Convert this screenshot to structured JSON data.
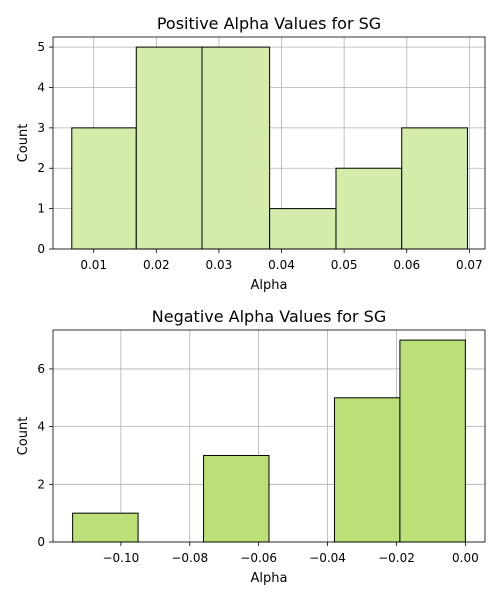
{
  "chart_data": [
    {
      "type": "bar",
      "title": "Positive Alpha Values for SG",
      "xlabel": "Alpha",
      "ylabel": "Count",
      "xlim": [
        0.0035,
        0.0725
      ],
      "ylim": [
        0,
        5.25
      ],
      "xticks": [
        0.01,
        0.02,
        0.03,
        0.04,
        0.05,
        0.06,
        0.07
      ],
      "xtick_labels": [
        "0.01",
        "0.02",
        "0.03",
        "0.04",
        "0.05",
        "0.06",
        "0.07"
      ],
      "yticks": [
        0,
        1,
        2,
        3,
        4,
        5
      ],
      "ytick_labels": [
        "0",
        "1",
        "2",
        "3",
        "4",
        "5"
      ],
      "bin_edges": [
        0.0065,
        0.0168,
        0.0273,
        0.0381,
        0.0487,
        0.0592,
        0.0697
      ],
      "values": [
        3,
        5,
        5,
        1,
        2,
        3
      ],
      "bar_color": "#d4ebaa",
      "edge_color": "#000000",
      "grid": true
    },
    {
      "type": "bar",
      "title": "Negative Alpha Values for SG",
      "xlabel": "Alpha",
      "ylabel": "Count",
      "xlim": [
        -0.1197,
        0.0057
      ],
      "ylim": [
        0,
        7.35
      ],
      "xticks": [
        -0.1,
        -0.08,
        -0.06,
        -0.04,
        -0.02,
        0.0
      ],
      "xtick_labels": [
        "−0.10",
        "−0.08",
        "−0.06",
        "−0.04",
        "−0.02",
        "0.00"
      ],
      "yticks": [
        0,
        2,
        4,
        6
      ],
      "ytick_labels": [
        "0",
        "2",
        "4",
        "6"
      ],
      "bin_edges": [
        -0.114,
        -0.095,
        -0.076,
        -0.057,
        -0.038,
        -0.019,
        0.0
      ],
      "values": [
        1,
        0,
        3,
        0,
        5,
        7
      ],
      "bar_color": "#bbe078",
      "edge_color": "#000000",
      "grid": true
    }
  ]
}
